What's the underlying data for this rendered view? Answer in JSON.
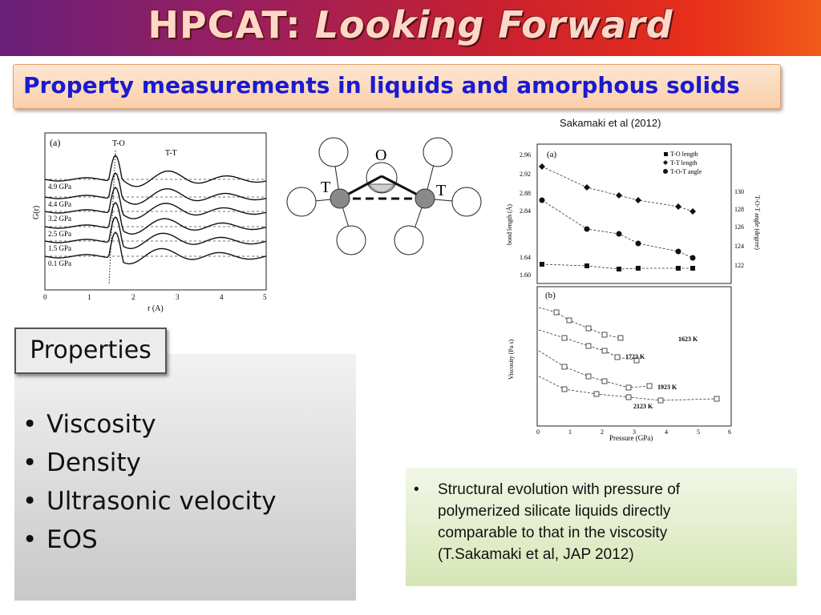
{
  "header": {
    "title_prefix": "HPCAT: ",
    "title_italic": "Looking Forward",
    "subtitle": "Property measurements in liquids and amorphous solids",
    "citation": "Sakamaki et al (2012)"
  },
  "gr_plot": {
    "panel": "(a)",
    "peak_labels": [
      "T-O",
      "T-T"
    ],
    "pressures": [
      "4.9 GPa",
      "4.4 GPa",
      "3.2 GPa",
      "2.5 GPa",
      "1.5 GPa",
      "0.1 GPa"
    ],
    "ylabel": "G(r)",
    "xlabel": "r (A)",
    "xticks": [
      "0",
      "1",
      "2",
      "3",
      "4",
      "5"
    ]
  },
  "structure": {
    "labels": [
      "O",
      "T",
      "T"
    ]
  },
  "bond_plot": {
    "panel": "(a)",
    "legend": [
      "T-O length",
      "T-T length",
      "T-O-T angle"
    ],
    "yticks_left": [
      "2.96",
      "2.92",
      "2.88",
      "2.84",
      "1.64",
      "1.60"
    ],
    "yticks_right": [
      "130",
      "128",
      "126",
      "124",
      "122"
    ],
    "ylabel_left": "bond length (Å)",
    "ylabel_right": "T-O-T angle (degree)"
  },
  "visc_plot": {
    "panel": "(b)",
    "ylabel": "Viscosity (Pa s)",
    "xlabel": "Pressure (GPa)",
    "xticks": [
      "0",
      "1",
      "2",
      "3",
      "4",
      "5",
      "6"
    ],
    "series_labels": [
      "1623 K",
      "1723 K",
      "1923 K",
      "2123 K"
    ]
  },
  "properties": {
    "header": "Properties",
    "items": [
      "Viscosity",
      "Density",
      "Ultrasonic velocity",
      "EOS"
    ]
  },
  "note": {
    "lines": [
      "Structural evolution with pressure of",
      "polymerized silicate liquids directly",
      "comparable to that in the viscosity",
      "(T.Sakamaki et al, JAP 2012)"
    ]
  }
}
